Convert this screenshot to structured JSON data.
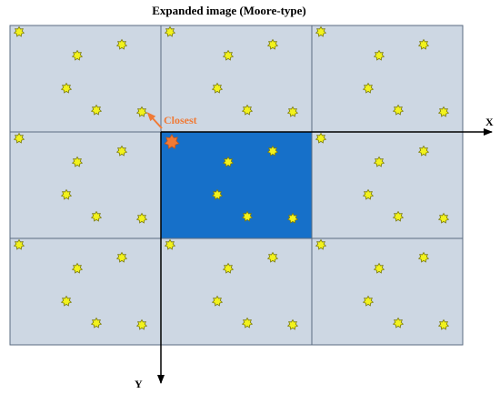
{
  "title": "Expanded image (Moore-type)",
  "axes": {
    "x_label": "X",
    "y_label": "Y"
  },
  "closest_label": "Closest",
  "colors": {
    "cell_fill": "#cdd7e3",
    "cell_border": "#5a6b80",
    "center_fill": "#1670c9",
    "star_fill": "#f2f21c",
    "star_stroke": "#7a7a10",
    "closest_fill": "#f07a36",
    "axis": "#000000"
  },
  "grid": {
    "rows": 3,
    "cols": 3,
    "center_cell": [
      1,
      1
    ]
  },
  "icons": {
    "particle": "star-icon",
    "closest_particle": "orange-star-icon",
    "closest_arrow": "arrow-icon"
  }
}
